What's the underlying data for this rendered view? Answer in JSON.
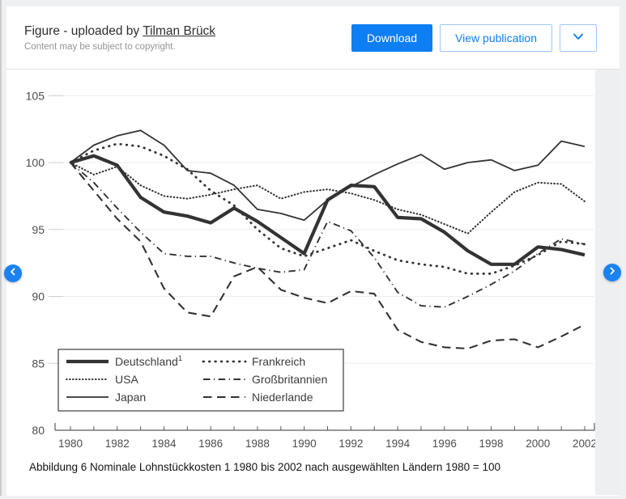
{
  "header": {
    "title_prefix": "Figure - uploaded by ",
    "uploader": "Tilman Brück",
    "copyright_note": "Content may be subject to copyright.",
    "download_label": "Download",
    "view_publication_label": "View publication",
    "accent_color": "#0d7ff2"
  },
  "figure": {
    "caption": "Abbildung 6 Nominale Lohnstückkosten 1 1980 bis 2002 nach ausgewählten Ländern 1980 = 100"
  },
  "chart_data": {
    "type": "line",
    "title": "",
    "xlabel": "",
    "ylabel": "",
    "x": [
      1980,
      1981,
      1982,
      1983,
      1984,
      1985,
      1986,
      1987,
      1988,
      1989,
      1990,
      1991,
      1992,
      1993,
      1994,
      1995,
      1996,
      1997,
      1998,
      1999,
      2000,
      2001,
      2002
    ],
    "x_tick_labels": [
      "1980",
      "1982",
      "1984",
      "1986",
      "1988",
      "1990",
      "1992",
      "1994",
      "1996",
      "1998",
      "2000",
      "2002"
    ],
    "ylim": [
      80,
      105
    ],
    "yticks": [
      80,
      85,
      90,
      95,
      100,
      105
    ],
    "grid": "horizontal",
    "legend_position": "bottom-left",
    "line_color": "#333333",
    "series": [
      {
        "name": "Deutschland",
        "footnote": "1",
        "style": "solid-thick",
        "values": [
          100,
          100.5,
          99.8,
          97.4,
          96.3,
          96.0,
          95.5,
          96.6,
          95.6,
          94.4,
          93.2,
          97.2,
          98.3,
          98.2,
          95.9,
          95.8,
          94.8,
          93.4,
          92.4,
          92.4,
          93.7,
          93.5,
          93.1
        ]
      },
      {
        "name": "USA",
        "footnote": "",
        "style": "dotted-fine",
        "values": [
          100,
          99.1,
          99.7,
          98.3,
          97.5,
          97.3,
          97.6,
          98.0,
          98.3,
          97.3,
          97.8,
          98.0,
          97.7,
          97.2,
          96.5,
          96.1,
          95.4,
          94.7,
          96.3,
          97.8,
          98.5,
          98.4,
          97.1
        ]
      },
      {
        "name": "Japan",
        "footnote": "",
        "style": "solid-thin",
        "values": [
          100,
          101.3,
          102.0,
          102.4,
          101.3,
          99.4,
          99.2,
          98.3,
          96.5,
          96.2,
          95.7,
          97.2,
          98.2,
          99.1,
          99.9,
          100.6,
          99.5,
          100.0,
          100.2,
          99.4,
          99.8,
          101.6,
          101.2
        ]
      },
      {
        "name": "Frankreich",
        "footnote": "",
        "style": "dotted-sparse",
        "values": [
          100,
          100.9,
          101.4,
          101.2,
          100.5,
          99.5,
          97.9,
          96.8,
          95.0,
          93.6,
          93.0,
          93.6,
          94.2,
          93.4,
          92.7,
          92.4,
          92.2,
          91.7,
          91.7,
          92.3,
          93.1,
          94.1,
          93.9
        ]
      },
      {
        "name": "Großbritannien",
        "footnote": "",
        "style": "dash-dot",
        "values": [
          100,
          98.5,
          96.6,
          94.8,
          93.2,
          93.0,
          93.0,
          92.5,
          92.1,
          91.8,
          92.0,
          95.6,
          94.9,
          92.9,
          90.3,
          89.3,
          89.2,
          90.0,
          90.9,
          91.9,
          93.2,
          94.3,
          93.9
        ]
      },
      {
        "name": "Niederlande",
        "footnote": "",
        "style": "dashed",
        "values": [
          100,
          97.9,
          95.8,
          94.1,
          90.6,
          88.8,
          88.5,
          91.5,
          92.2,
          90.5,
          89.9,
          89.5,
          90.4,
          90.2,
          87.5,
          86.6,
          86.2,
          86.1,
          86.7,
          86.8,
          86.2,
          87.0,
          87.9
        ]
      }
    ]
  }
}
